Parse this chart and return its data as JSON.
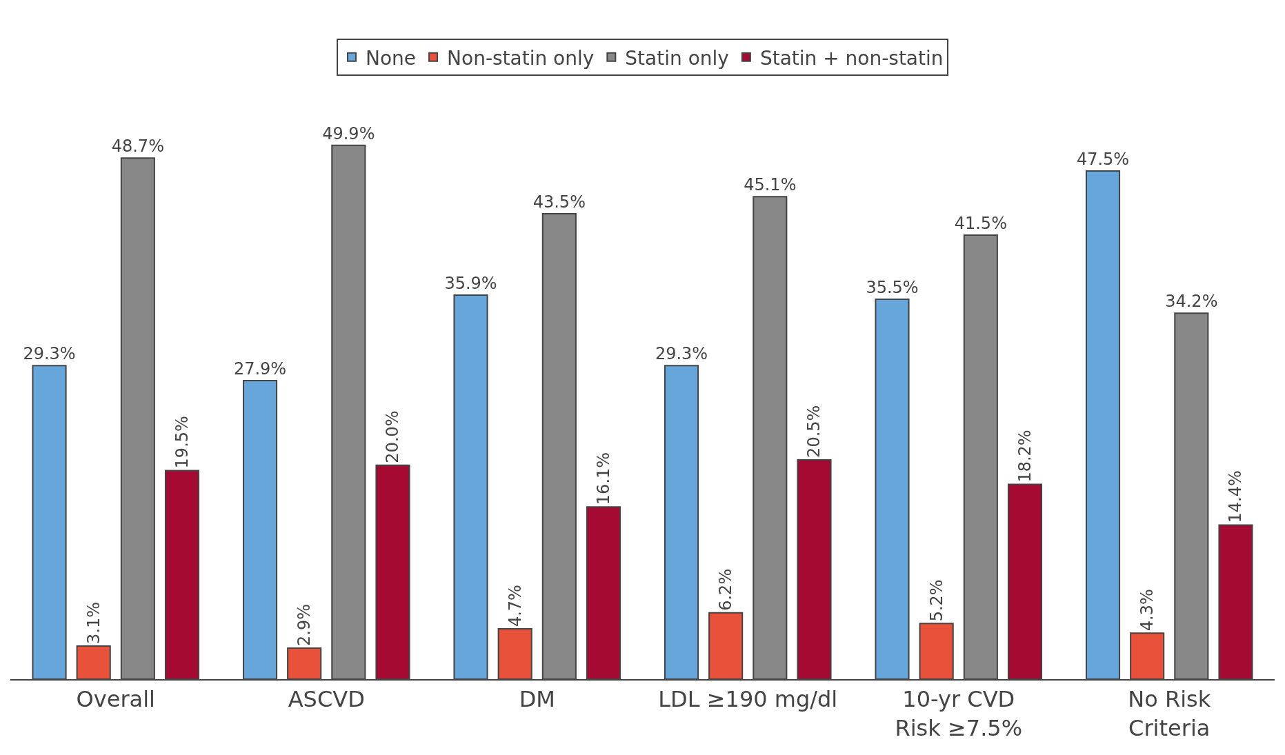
{
  "chart_data": {
    "type": "bar",
    "categories": [
      "Overall",
      "ASCVD",
      "DM",
      "LDL ≥190 mg/dl",
      "10-yr CVD\nRisk ≥7.5%",
      "No Risk\nCriteria"
    ],
    "series": [
      {
        "name": "None",
        "color": "#66a6db",
        "values": [
          29.3,
          27.9,
          35.9,
          29.3,
          35.5,
          47.5
        ],
        "value_labels": [
          "29.3%",
          "27.9%",
          "35.9%",
          "29.3%",
          "35.5%",
          "47.5%"
        ]
      },
      {
        "name": "Non-statin only",
        "color": "#e8513a",
        "values": [
          3.1,
          2.9,
          4.7,
          6.2,
          5.2,
          4.3
        ],
        "value_labels": [
          "3.1%",
          "2.9%",
          "4.7%",
          "6.2%",
          "5.2%",
          "4.3%"
        ]
      },
      {
        "name": "Statin only",
        "color": "#888888",
        "values": [
          48.7,
          49.9,
          43.5,
          45.1,
          41.5,
          34.2
        ],
        "value_labels": [
          "48.7%",
          "49.9%",
          "43.5%",
          "45.1%",
          "41.5%",
          "34.2%"
        ]
      },
      {
        "name": "Statin + non-statin",
        "color": "#a50a33",
        "values": [
          19.5,
          20.0,
          16.1,
          20.5,
          18.2,
          14.4
        ],
        "value_labels": [
          "19.5%",
          "20.0%",
          "16.1%",
          "20.5%",
          "18.2%",
          "14.4%"
        ]
      }
    ],
    "legend": "top"
  }
}
